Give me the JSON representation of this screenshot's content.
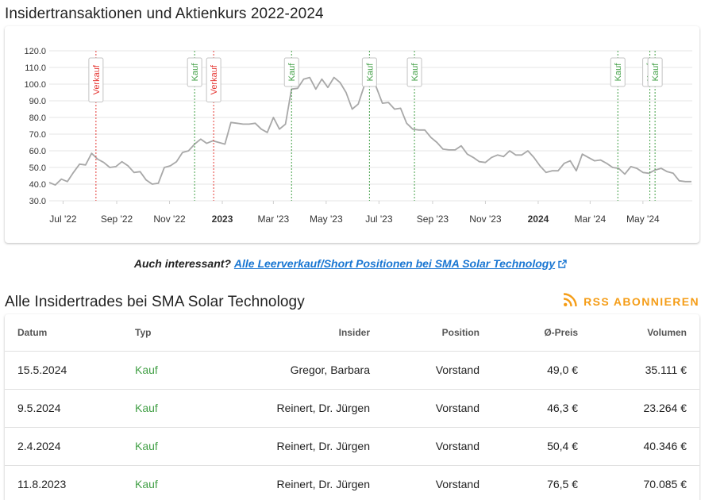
{
  "headings": {
    "chart_title": "Insidertransaktionen und Aktienkurs 2022-2024",
    "trades_title": "Alle Insidertrades bei SMA Solar Technology"
  },
  "promo": {
    "lead": "Auch interessant?",
    "link": "Alle Leerverkauf/Short Positionen bei SMA Solar Technology"
  },
  "rss": {
    "label": "RSS ABONNIEREN"
  },
  "colors": {
    "buy": "#43a047",
    "sell": "#e53935",
    "price_line": "#a8a8a8",
    "link": "#1976d2",
    "rss": "#f59d17"
  },
  "table": {
    "headers": {
      "date": "Datum",
      "type": "Typ",
      "insider": "Insider",
      "position": "Position",
      "price": "Ø-Preis",
      "volume": "Volumen"
    },
    "rows": [
      {
        "date": "15.5.2024",
        "type": "Kauf",
        "insider": "Gregor, Barbara",
        "position": "Vorstand",
        "price": "49,0 €",
        "volume": "35.111 €"
      },
      {
        "date": "9.5.2024",
        "type": "Kauf",
        "insider": "Reinert, Dr. Jürgen",
        "position": "Vorstand",
        "price": "46,3 €",
        "volume": "23.264 €"
      },
      {
        "date": "2.4.2024",
        "type": "Kauf",
        "insider": "Reinert, Dr. Jürgen",
        "position": "Vorstand",
        "price": "50,4 €",
        "volume": "40.346 €"
      },
      {
        "date": "11.8.2023",
        "type": "Kauf",
        "insider": "Reinert, Dr. Jürgen",
        "position": "Vorstand",
        "price": "76,5 €",
        "volume": "70.085 €"
      }
    ]
  },
  "chart_data": {
    "type": "line",
    "title": "",
    "xlabel": "",
    "ylabel": "",
    "ylim": [
      30,
      120
    ],
    "y_ticks": [
      "30.0",
      "40.0",
      "50.0",
      "60.0",
      "70.0",
      "80.0",
      "90.0",
      "100.0",
      "110.0",
      "120.0"
    ],
    "x_range": [
      "2022-06-15",
      "2024-06-27"
    ],
    "x_ticks": [
      {
        "date": "2022-07-01",
        "label": "Jul '22",
        "bold": false
      },
      {
        "date": "2022-09-01",
        "label": "Sep '22",
        "bold": false
      },
      {
        "date": "2022-11-01",
        "label": "Nov '22",
        "bold": false
      },
      {
        "date": "2023-01-01",
        "label": "2023",
        "bold": true
      },
      {
        "date": "2023-03-01",
        "label": "Mar '23",
        "bold": false
      },
      {
        "date": "2023-05-01",
        "label": "May '23",
        "bold": false
      },
      {
        "date": "2023-07-01",
        "label": "Jul '23",
        "bold": false
      },
      {
        "date": "2023-09-01",
        "label": "Sep '23",
        "bold": false
      },
      {
        "date": "2023-11-01",
        "label": "Nov '23",
        "bold": false
      },
      {
        "date": "2024-01-01",
        "label": "2024",
        "bold": true
      },
      {
        "date": "2024-03-01",
        "label": "Mar '24",
        "bold": false
      },
      {
        "date": "2024-05-01",
        "label": "May '24",
        "bold": false
      }
    ],
    "grid": true,
    "legend": "none",
    "series": [
      {
        "points": [
          [
            "2022-06-15",
            41
          ],
          [
            "2022-06-22",
            39.5
          ],
          [
            "2022-06-29",
            43
          ],
          [
            "2022-07-06",
            41.5
          ],
          [
            "2022-07-13",
            47
          ],
          [
            "2022-07-20",
            52
          ],
          [
            "2022-07-27",
            51.5
          ],
          [
            "2022-08-03",
            58.5
          ],
          [
            "2022-08-10",
            55
          ],
          [
            "2022-08-17",
            53
          ],
          [
            "2022-08-24",
            50
          ],
          [
            "2022-08-31",
            50.5
          ],
          [
            "2022-09-07",
            53.5
          ],
          [
            "2022-09-14",
            51
          ],
          [
            "2022-09-21",
            47
          ],
          [
            "2022-09-28",
            47.5
          ],
          [
            "2022-10-05",
            42.5
          ],
          [
            "2022-10-12",
            40
          ],
          [
            "2022-10-19",
            40.5
          ],
          [
            "2022-10-26",
            50
          ],
          [
            "2022-11-02",
            51
          ],
          [
            "2022-11-09",
            53.5
          ],
          [
            "2022-11-16",
            59
          ],
          [
            "2022-11-23",
            60
          ],
          [
            "2022-11-30",
            64
          ],
          [
            "2022-12-07",
            67
          ],
          [
            "2022-12-14",
            64.5
          ],
          [
            "2022-12-21",
            66
          ],
          [
            "2022-12-28",
            65
          ],
          [
            "2023-01-04",
            64
          ],
          [
            "2023-01-11",
            77
          ],
          [
            "2023-01-18",
            76.5
          ],
          [
            "2023-01-25",
            76
          ],
          [
            "2023-02-01",
            76
          ],
          [
            "2023-02-08",
            76.5
          ],
          [
            "2023-02-15",
            73
          ],
          [
            "2023-02-22",
            71
          ],
          [
            "2023-03-01",
            80
          ],
          [
            "2023-03-08",
            73
          ],
          [
            "2023-03-15",
            76
          ],
          [
            "2023-03-22",
            97
          ],
          [
            "2023-03-29",
            97.5
          ],
          [
            "2023-04-05",
            103
          ],
          [
            "2023-04-12",
            104
          ],
          [
            "2023-04-19",
            97
          ],
          [
            "2023-04-26",
            103
          ],
          [
            "2023-05-03",
            98
          ],
          [
            "2023-05-10",
            104
          ],
          [
            "2023-05-17",
            101
          ],
          [
            "2023-05-24",
            95
          ],
          [
            "2023-05-31",
            85
          ],
          [
            "2023-06-07",
            88
          ],
          [
            "2023-06-14",
            99
          ],
          [
            "2023-06-21",
            110
          ],
          [
            "2023-06-28",
            98
          ],
          [
            "2023-07-05",
            88.5
          ],
          [
            "2023-07-12",
            89
          ],
          [
            "2023-07-19",
            85
          ],
          [
            "2023-07-26",
            85.5
          ],
          [
            "2023-08-02",
            76.5
          ],
          [
            "2023-08-09",
            73
          ],
          [
            "2023-08-16",
            72.5
          ],
          [
            "2023-08-23",
            72.5
          ],
          [
            "2023-08-30",
            68
          ],
          [
            "2023-09-06",
            65
          ],
          [
            "2023-09-13",
            61
          ],
          [
            "2023-09-20",
            60.5
          ],
          [
            "2023-09-27",
            60.5
          ],
          [
            "2023-10-04",
            63
          ],
          [
            "2023-10-11",
            58
          ],
          [
            "2023-10-18",
            56
          ],
          [
            "2023-10-25",
            53.5
          ],
          [
            "2023-11-01",
            53
          ],
          [
            "2023-11-08",
            56
          ],
          [
            "2023-11-15",
            57.5
          ],
          [
            "2023-11-22",
            56.5
          ],
          [
            "2023-11-29",
            60
          ],
          [
            "2023-12-06",
            57.5
          ],
          [
            "2023-12-13",
            57.5
          ],
          [
            "2023-12-20",
            60
          ],
          [
            "2023-12-27",
            56
          ],
          [
            "2024-01-03",
            51
          ],
          [
            "2024-01-10",
            47
          ],
          [
            "2024-01-17",
            48
          ],
          [
            "2024-01-24",
            48
          ],
          [
            "2024-01-31",
            52.5
          ],
          [
            "2024-02-07",
            54
          ],
          [
            "2024-02-14",
            48
          ],
          [
            "2024-02-21",
            58
          ],
          [
            "2024-02-28",
            56
          ],
          [
            "2024-03-06",
            54
          ],
          [
            "2024-03-13",
            54.5
          ],
          [
            "2024-03-20",
            52.5
          ],
          [
            "2024-03-27",
            50
          ],
          [
            "2024-04-03",
            49.5
          ],
          [
            "2024-04-10",
            46
          ],
          [
            "2024-04-17",
            50.5
          ],
          [
            "2024-04-24",
            49.5
          ],
          [
            "2024-05-01",
            47
          ],
          [
            "2024-05-08",
            46.5
          ],
          [
            "2024-05-15",
            48.5
          ],
          [
            "2024-05-22",
            49.5
          ],
          [
            "2024-05-29",
            47.5
          ],
          [
            "2024-06-05",
            46.5
          ],
          [
            "2024-06-12",
            42
          ],
          [
            "2024-06-19",
            41.5
          ],
          [
            "2024-06-26",
            41.5
          ]
        ]
      }
    ],
    "insider_markers": [
      {
        "date": "2022-08-08",
        "label": "Verkauf",
        "kind": "sell"
      },
      {
        "date": "2022-11-30",
        "label": "Kauf",
        "kind": "buy"
      },
      {
        "date": "2022-12-22",
        "label": "Verkauf",
        "kind": "sell"
      },
      {
        "date": "2023-03-22",
        "label": "Kauf",
        "kind": "buy"
      },
      {
        "date": "2023-06-20",
        "label": "Kauf",
        "kind": "buy"
      },
      {
        "date": "2023-08-11",
        "label": "Kauf",
        "kind": "buy"
      },
      {
        "date": "2024-04-02",
        "label": "Kauf",
        "kind": "buy"
      },
      {
        "date": "2024-05-09",
        "label": "Kauf",
        "kind": "buy"
      },
      {
        "date": "2024-05-15",
        "label": "Kauf",
        "kind": "buy"
      }
    ]
  }
}
